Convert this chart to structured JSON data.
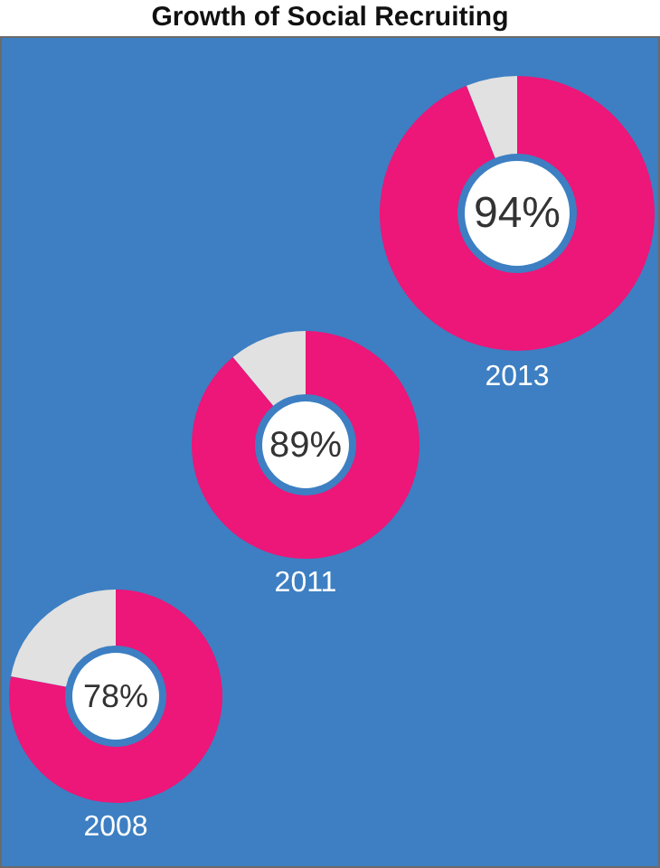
{
  "chart_data": [
    {
      "type": "donut",
      "title": "Growth of Social Recruiting",
      "xlabel": "2013",
      "categories": [
        null,
        null
      ],
      "values": [
        94,
        6
      ],
      "colors": [
        "#ed1679",
        "#e1e1e1"
      ],
      "value_labels": [
        "94%",
        null
      ],
      "legend": false
    },
    {
      "type": "donut",
      "xlabel": "2011",
      "categories": [
        null,
        null
      ],
      "values": [
        89,
        11
      ],
      "colors": [
        "#ed1679",
        "#e1e1e1"
      ],
      "value_labels": [
        "89%",
        null
      ],
      "legend": false
    },
    {
      "type": "donut",
      "xlabel": "2008",
      "categories": [
        null,
        null
      ],
      "values": [
        78,
        22
      ],
      "colors": [
        "#ed1679",
        "#e1e1e1"
      ],
      "value_labels": [
        "78%",
        null
      ],
      "legend": false
    }
  ]
}
